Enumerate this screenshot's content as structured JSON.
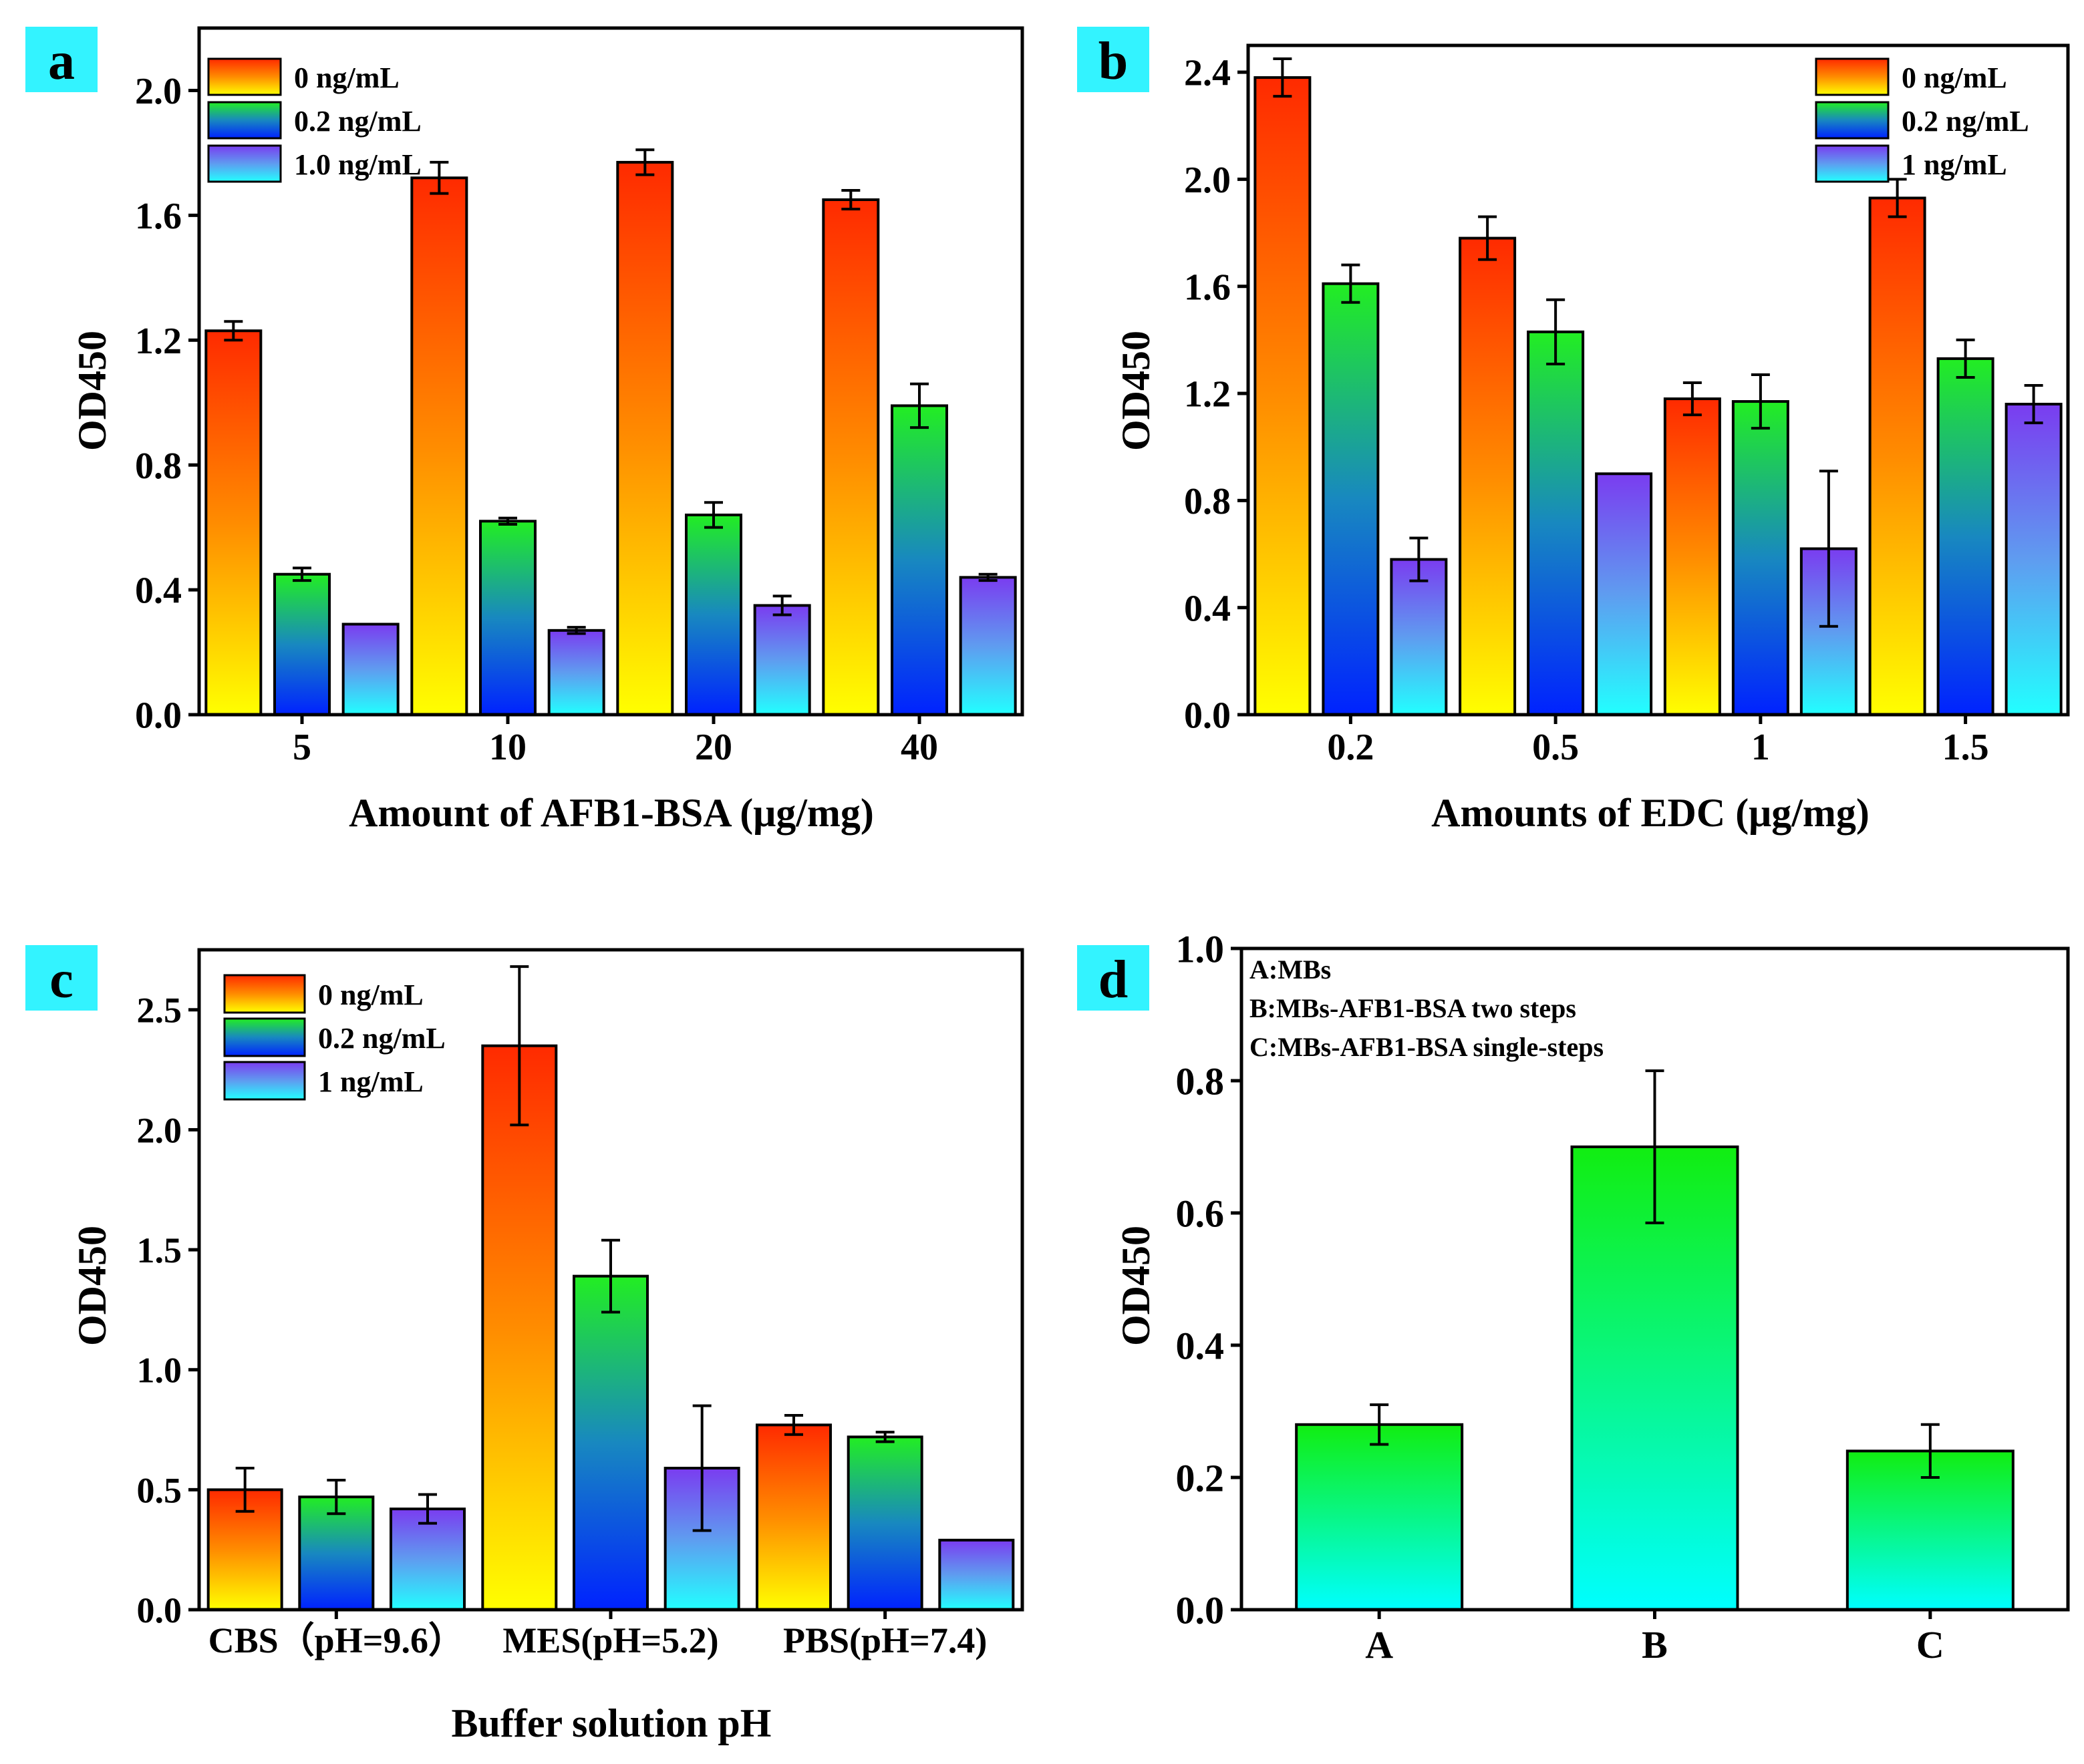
{
  "colors": {
    "panel_label_bg": "#33f3ff",
    "grad_0": [
      "#ff2a00",
      "#ff8c00",
      "#ffff00"
    ],
    "grad_02": [
      "#22ee22",
      "#1888c0",
      "#0022ff"
    ],
    "grad_1": [
      "#7a3cf0",
      "#5f9cf0",
      "#22ffff"
    ],
    "grad_d": [
      "#11ee11",
      "#00ffff"
    ]
  },
  "chart_data": [
    {
      "panel": "a",
      "type": "bar",
      "title": "",
      "xlabel": "Amount of AFB1-BSA (μg/mg)",
      "ylabel": "OD450",
      "ylim": [
        0,
        2.2
      ],
      "yticks": [
        0.0,
        0.4,
        0.8,
        1.2,
        1.6,
        2.0
      ],
      "ytick_labels": [
        "0.0",
        "0.4",
        "0.8",
        "1.2",
        "1.6",
        "2.0"
      ],
      "categories": [
        "5",
        "10",
        "20",
        "40"
      ],
      "legend_position": "top-left",
      "series": [
        {
          "name": "0 ng/mL",
          "gradient": "grad_0",
          "values": [
            1.23,
            1.72,
            1.77,
            1.65
          ],
          "errors": [
            0.03,
            0.05,
            0.04,
            0.03
          ]
        },
        {
          "name": "0.2 ng/mL",
          "gradient": "grad_02",
          "values": [
            0.45,
            0.62,
            0.64,
            0.99
          ],
          "errors": [
            0.02,
            0.01,
            0.04,
            0.07
          ]
        },
        {
          "name": "1.0 ng/mL",
          "gradient": "grad_1",
          "values": [
            0.29,
            0.27,
            0.35,
            0.44
          ],
          "errors": [
            0.0,
            0.01,
            0.03,
            0.01
          ]
        }
      ]
    },
    {
      "panel": "b",
      "type": "bar",
      "title": "",
      "xlabel": "Amounts of EDC (μg/mg)",
      "ylabel": "OD450",
      "ylim": [
        0,
        2.5
      ],
      "yticks": [
        0.0,
        0.4,
        0.8,
        1.2,
        1.6,
        2.0,
        2.4
      ],
      "ytick_labels": [
        "0.0",
        "0.4",
        "0.8",
        "1.2",
        "1.6",
        "2.0",
        "2.4"
      ],
      "categories": [
        "0.2",
        "0.5",
        "1",
        "1.5"
      ],
      "legend_position": "top-right",
      "series": [
        {
          "name": "0 ng/mL",
          "gradient": "grad_0",
          "values": [
            2.38,
            1.78,
            1.18,
            1.93
          ],
          "errors": [
            0.07,
            0.08,
            0.06,
            0.07
          ]
        },
        {
          "name": "0.2 ng/mL",
          "gradient": "grad_02",
          "values": [
            1.61,
            1.43,
            1.17,
            1.33
          ],
          "errors": [
            0.07,
            0.12,
            0.1,
            0.07
          ]
        },
        {
          "name": "1 ng/mL",
          "gradient": "grad_1",
          "values": [
            0.58,
            0.9,
            0.62,
            1.16
          ],
          "errors": [
            0.08,
            0.0,
            0.29,
            0.07
          ]
        }
      ]
    },
    {
      "panel": "c",
      "type": "bar",
      "title": "",
      "xlabel": "Buffer solution pH",
      "ylabel": "OD450",
      "ylim": [
        0,
        2.75
      ],
      "yticks": [
        0.0,
        0.5,
        1.0,
        1.5,
        2.0,
        2.5
      ],
      "ytick_labels": [
        "0.0",
        "0.5",
        "1.0",
        "1.5",
        "2.0",
        "2.5"
      ],
      "categories": [
        "CBS（pH=9.6）",
        "MES(pH=5.2)",
        "PBS(pH=7.4)"
      ],
      "legend_position": "top-left",
      "series": [
        {
          "name": "0 ng/mL",
          "gradient": "grad_0",
          "values": [
            0.5,
            2.35,
            0.77
          ],
          "errors": [
            0.09,
            0.33,
            0.04
          ]
        },
        {
          "name": "0.2 ng/mL",
          "gradient": "grad_02",
          "values": [
            0.47,
            1.39,
            0.72
          ],
          "errors": [
            0.07,
            0.15,
            0.02
          ]
        },
        {
          "name": "1 ng/mL",
          "gradient": "grad_1",
          "values": [
            0.42,
            0.59,
            0.29
          ],
          "errors": [
            0.06,
            0.26,
            0.0
          ]
        }
      ]
    },
    {
      "panel": "d",
      "type": "bar",
      "title": "",
      "xlabel": "",
      "ylabel": "OD450",
      "ylim": [
        0,
        1.0
      ],
      "yticks": [
        0.0,
        0.2,
        0.4,
        0.6,
        0.8,
        1.0
      ],
      "ytick_labels": [
        "0.0",
        "0.2",
        "0.4",
        "0.6",
        "0.8",
        "1.0"
      ],
      "categories": [
        "A",
        "B",
        "C"
      ],
      "annotations": [
        "A:MBs",
        "B:MBs-AFB1-BSA two steps",
        "C:MBs-AFB1-BSA single-steps"
      ],
      "series": [
        {
          "name": "",
          "gradient": "grad_d",
          "values": [
            0.28,
            0.7,
            0.24
          ],
          "errors": [
            0.03,
            0.115,
            0.04
          ]
        }
      ]
    }
  ]
}
